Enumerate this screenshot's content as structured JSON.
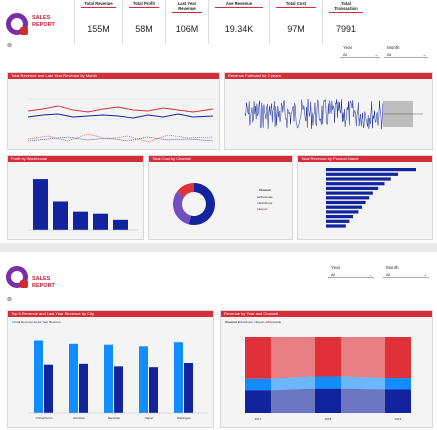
{
  "report1": {
    "logo_text_line1": "SALES",
    "logo_text_line2": "REPORT",
    "kpis": [
      {
        "title": "Total Revenue",
        "value": "155M"
      },
      {
        "title": "Total Profit",
        "value": "58M"
      },
      {
        "title": "Last Year Revenue",
        "value": "106M"
      },
      {
        "title": "Ave Revenue",
        "value": "19.34K"
      },
      {
        "title": "Total Cost",
        "value": "97M"
      },
      {
        "title": "Total Transaction",
        "value": "7991"
      }
    ],
    "slicers": [
      {
        "label": "Year",
        "value": "All"
      },
      {
        "label": "Month",
        "value": "All"
      }
    ],
    "panels": {
      "revenue_by_month": "Total Revenue and Last Year Revenue by Month",
      "forecast": "Revenue Forecast for 2 years",
      "profit_by_warehouse": "Profit by Warehouse",
      "cost_by_channel": "Total Cost by Channel",
      "revenue_by_product": "Total Revenue by Product Name"
    },
    "channel_legend": {
      "title": "Channel",
      "items": [
        "Wholesale",
        "Distributor",
        "Export"
      ]
    }
  },
  "report2": {
    "logo_text_line1": "SALES",
    "logo_text_line2": "REPORT",
    "slicers": [
      {
        "label": "Year",
        "value": "All"
      },
      {
        "label": "Month",
        "value": "All"
      }
    ],
    "panels": {
      "top5_city": "Top 5 Revenue and Last Year Revenue by City",
      "year_channel": "Revenue by Year and Channel"
    },
    "city_legend": [
      "Total Revenue",
      "Last Year Revenue"
    ],
    "ribbon_legend": {
      "title": "Channel",
      "items": [
        "Distributor",
        "Export",
        "Wholesale"
      ]
    }
  },
  "colors": {
    "accent": "#d32f3a",
    "navy": "#12239e",
    "blue": "#118dff",
    "purple": "#744ec2",
    "red": "#e0303a",
    "panel_bg": "#f4f4f4"
  },
  "chart_data": [
    {
      "type": "bar",
      "title": "Top 5 Revenue and Last Year Revenue by City",
      "categories": [
        "Christchurch",
        "Hamilton",
        "Manukau",
        "Napier",
        "Wellington"
      ],
      "series": [
        {
          "name": "Total Revenue",
          "values": [
            8.7,
            8.3,
            8.2,
            8.0,
            8.5
          ]
        },
        {
          "name": "Last Year Revenue",
          "values": [
            5.8,
            5.9,
            5.6,
            5.5,
            6.0
          ]
        }
      ],
      "ylim": [
        0,
        9
      ]
    },
    {
      "type": "bar",
      "title": "Profit by Warehouse",
      "categories": [
        "",
        "",
        "",
        "",
        ""
      ],
      "values": [
        25,
        14,
        9,
        8,
        5
      ],
      "ylim": [
        0,
        27
      ]
    },
    {
      "type": "pie",
      "title": "Total Cost by Channel",
      "categories": [
        "Wholesale",
        "Distributor",
        "Export"
      ],
      "values": [
        54,
        31,
        15
      ]
    },
    {
      "type": "area",
      "title": "Revenue by Year and Channel",
      "categories": [
        "2017",
        "2018",
        "2019"
      ],
      "series": [
        {
          "name": "Distributor",
          "values": [
            30,
            32,
            31
          ]
        },
        {
          "name": "Export",
          "values": [
            15,
            16,
            15
          ]
        },
        {
          "name": "Wholesale",
          "values": [
            55,
            52,
            54
          ]
        }
      ]
    }
  ]
}
